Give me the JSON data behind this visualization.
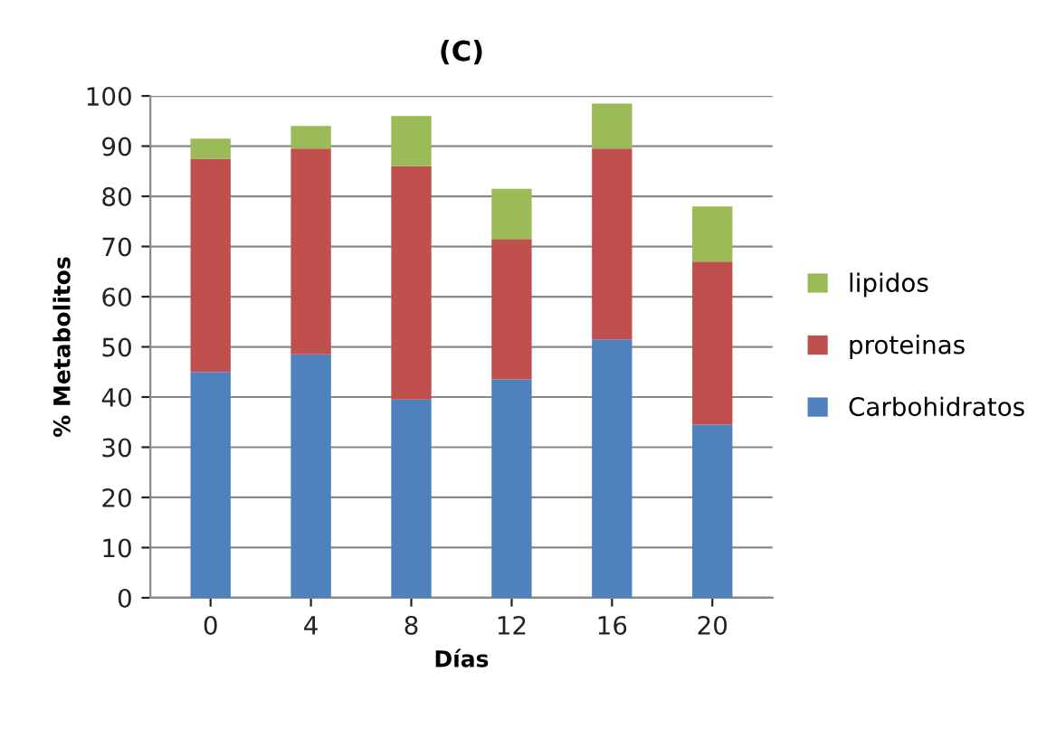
{
  "chart_data": {
    "type": "bar",
    "title": "(C)",
    "xlabel": "Días",
    "ylabel": "% Metabolitos",
    "categories": [
      "0",
      "4",
      "8",
      "12",
      "16",
      "20"
    ],
    "stacked": true,
    "series": [
      {
        "name": "Carbohidratos",
        "color": "#4f81bd",
        "values": [
          45,
          48.5,
          39.5,
          43.5,
          51.5,
          34.5
        ]
      },
      {
        "name": "proteinas",
        "color": "#c0504d",
        "values": [
          42.5,
          41,
          46.5,
          28,
          38,
          32.5
        ]
      },
      {
        "name": "lipidos",
        "color": "#9bbb59",
        "values": [
          4,
          4.5,
          10,
          10,
          9,
          11
        ]
      }
    ],
    "ylim": [
      0,
      100
    ],
    "yticks": [
      0,
      10,
      20,
      30,
      40,
      50,
      60,
      70,
      80,
      90,
      100
    ],
    "grid": "y",
    "legend": "right"
  }
}
